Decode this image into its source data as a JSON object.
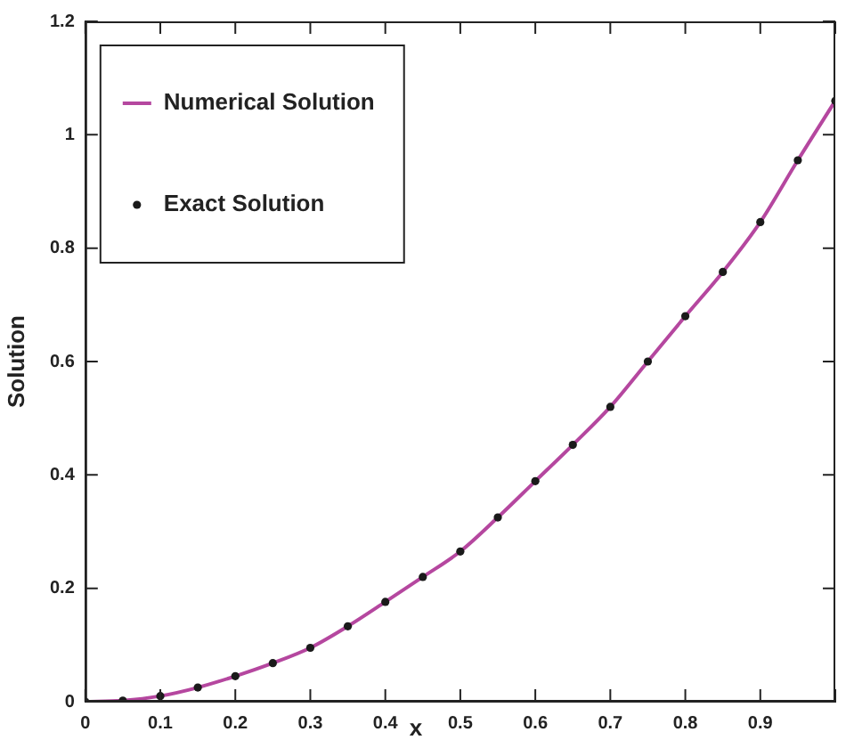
{
  "chart_data": {
    "type": "line",
    "xlabel": "x",
    "ylabel": "Solution",
    "x": [
      0,
      0.05,
      0.1,
      0.15,
      0.2,
      0.25,
      0.3,
      0.35,
      0.4,
      0.45,
      0.5,
      0.55,
      0.6,
      0.65,
      0.7,
      0.75,
      0.8,
      0.85,
      0.9,
      0.95,
      1.0
    ],
    "series": [
      {
        "name": "Numerical Solution",
        "color": "#b5479f",
        "type": "line",
        "marker": "none",
        "values": [
          0,
          0.002,
          0.01,
          0.025,
          0.045,
          0.068,
          0.095,
          0.133,
          0.176,
          0.22,
          0.265,
          0.325,
          0.389,
          0.453,
          0.52,
          0.6,
          0.68,
          0.758,
          0.846,
          0.955,
          1.06
        ]
      },
      {
        "name": "Exact Solution",
        "color": "#1a1a1a",
        "type": "scatter",
        "marker": "circle",
        "values": [
          0,
          0.002,
          0.01,
          0.025,
          0.045,
          0.068,
          0.095,
          0.133,
          0.176,
          0.22,
          0.265,
          0.325,
          0.389,
          0.453,
          0.52,
          0.6,
          0.68,
          0.758,
          0.846,
          0.955,
          1.06
        ]
      }
    ],
    "xlim": [
      0,
      1
    ],
    "xticks": [
      0,
      0.1,
      0.2,
      0.3,
      0.4,
      0.5,
      0.6,
      0.7,
      0.8,
      0.9,
      {
        "value": 1,
        "label": null
      }
    ],
    "ylim": [
      0,
      1.2
    ],
    "yticks": [
      0,
      0.2,
      0.4,
      0.6,
      0.8,
      1,
      1.2
    ],
    "grid": false,
    "legend": "top left"
  }
}
